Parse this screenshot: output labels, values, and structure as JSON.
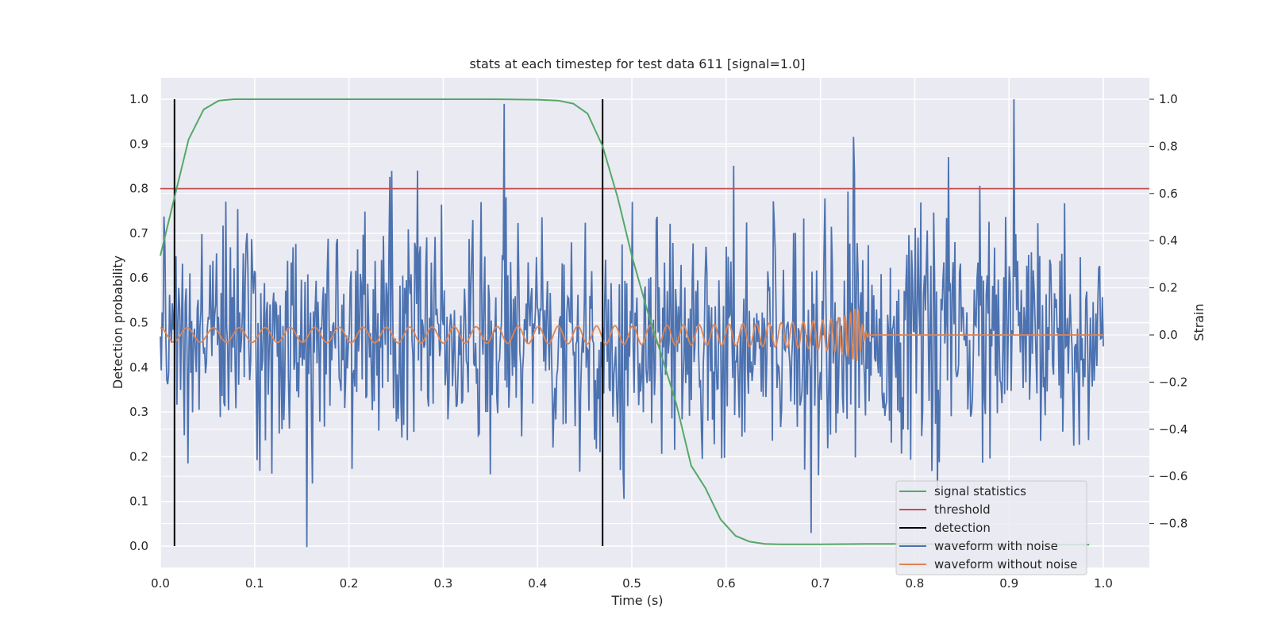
{
  "chart_data": {
    "type": "line",
    "title": "stats at each timestep for test data 611 [signal=1.0]",
    "xlabel": "Time (s)",
    "ylabel": "Detection probability",
    "y2label": "Strain",
    "xlim": [
      0.0,
      1.05
    ],
    "ylim": [
      -0.05,
      1.05
    ],
    "y2lim": [
      -0.99,
      1.08
    ],
    "xticks": [
      "0.0",
      "0.1",
      "0.2",
      "0.3",
      "0.4",
      "0.5",
      "0.6",
      "0.7",
      "0.8",
      "0.9",
      "1.0"
    ],
    "yticks": [
      "0.0",
      "0.1",
      "0.2",
      "0.3",
      "0.4",
      "0.5",
      "0.6",
      "0.7",
      "0.8",
      "0.9",
      "1.0"
    ],
    "y2ticks": [
      "−0.8",
      "−0.6",
      "−0.4",
      "−0.2",
      "0.0",
      "0.2",
      "0.4",
      "0.6",
      "0.8",
      "1.0"
    ],
    "grid": true,
    "legend_position": "lower-right",
    "colors": {
      "signal_statistics": "#55a868",
      "threshold": "#c44e52",
      "detection": "#000000",
      "waveform_with_noise": "#4c72b0",
      "waveform_without_noise": "#dd8452",
      "background": "#eaeaf2",
      "grid": "#ffffff"
    },
    "series": [
      {
        "name": "signal statistics",
        "axis": "left",
        "x": [
          0.0,
          0.015,
          0.03,
          0.046,
          0.062,
          0.078,
          0.1,
          0.15,
          0.2,
          0.25,
          0.3,
          0.35,
          0.4,
          0.422,
          0.438,
          0.453,
          0.469,
          0.485,
          0.5,
          0.516,
          0.531,
          0.547,
          0.563,
          0.578,
          0.594,
          0.61,
          0.625,
          0.641,
          0.656,
          0.7,
          0.75,
          0.8,
          0.85,
          0.9,
          0.95,
          0.985
        ],
        "y": [
          0.65,
          0.78,
          0.91,
          0.977,
          0.997,
          1.0,
          1.0,
          1.0,
          1.0,
          1.0,
          1.0,
          1.0,
          0.999,
          0.997,
          0.99,
          0.968,
          0.895,
          0.78,
          0.65,
          0.53,
          0.43,
          0.32,
          0.18,
          0.13,
          0.06,
          0.023,
          0.01,
          0.005,
          0.004,
          0.004,
          0.005,
          0.005,
          0.004,
          0.004,
          0.003,
          0.003
        ]
      },
      {
        "name": "threshold",
        "axis": "left",
        "x": [
          0.0,
          1.05
        ],
        "y": [
          0.8,
          0.8
        ]
      },
      {
        "name": "detection",
        "axis": "left",
        "x": [
          0.015,
          0.469
        ],
        "y": [
          0.0,
          1.0
        ]
      },
      {
        "name": "waveform with noise",
        "axis": "right",
        "x_range": [
          0.0,
          1.0
        ],
        "approx_amplitude_std": 0.25,
        "notable_peaks": [
          {
            "x": 0.155,
            "y": -0.9
          },
          {
            "x": 0.365,
            "y": 0.98
          },
          {
            "x": 0.69,
            "y": -0.84
          },
          {
            "x": 0.735,
            "y": 0.84
          },
          {
            "x": 0.905,
            "y": 1.0
          }
        ]
      },
      {
        "name": "waveform without noise",
        "axis": "right",
        "x_range": [
          0.0,
          1.0
        ],
        "description_points": {
          "amplitude_start": 0.03,
          "frequency_start_hz": 35,
          "merger_time": 0.74,
          "peak_amplitude": 0.12,
          "post_merger_value": 0.0
        }
      }
    ]
  }
}
